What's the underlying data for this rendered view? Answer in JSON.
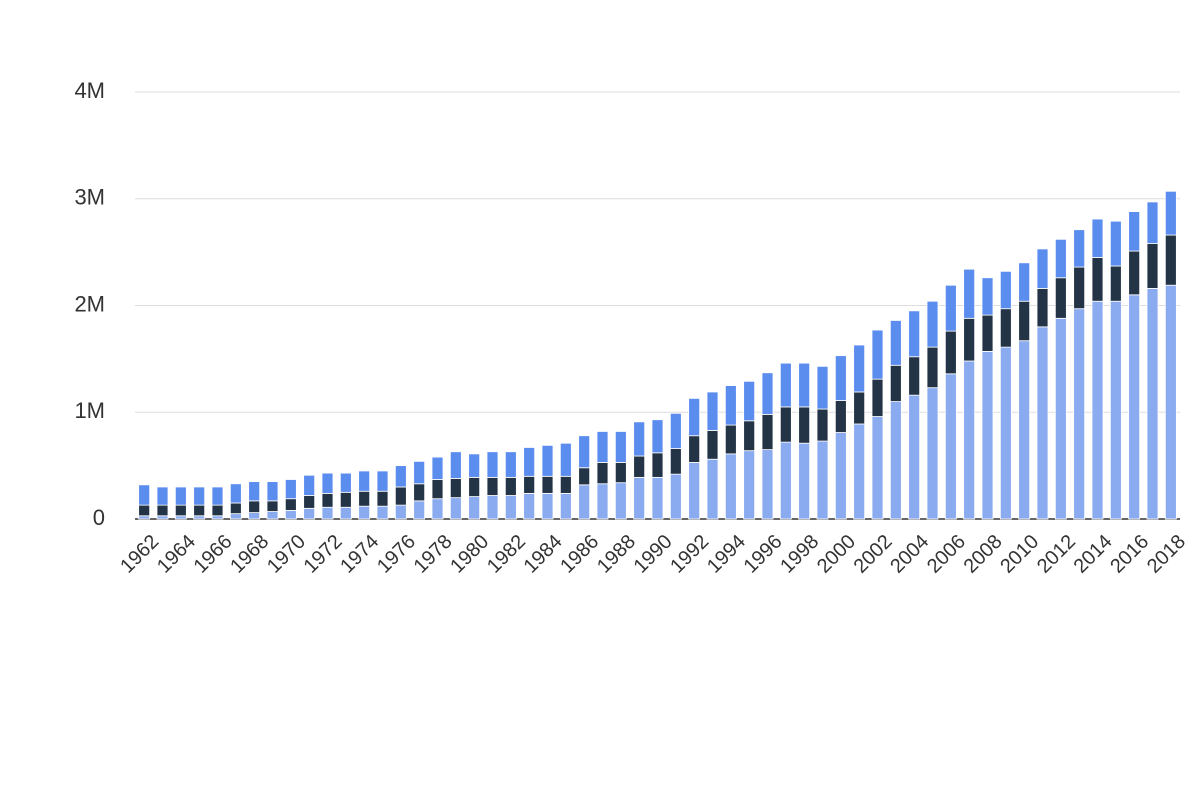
{
  "chart_data": {
    "type": "stacked_bar",
    "categories": [
      "1962",
      null,
      "1964",
      null,
      "1966",
      null,
      "1968",
      null,
      "1970",
      null,
      "1972",
      null,
      "1974",
      null,
      "1976",
      null,
      "1978",
      null,
      "1980",
      null,
      "1982",
      null,
      "1984",
      null,
      "1986",
      null,
      "1988",
      null,
      "1990",
      null,
      "1992",
      null,
      "1994",
      null,
      "1996",
      null,
      "1998",
      null,
      "2000",
      null,
      "2002",
      null,
      "2004",
      null,
      "2006",
      null,
      "2008",
      null,
      "2010",
      null,
      "2012",
      null,
      "2014",
      null,
      "2016",
      null,
      "2018"
    ],
    "series": [
      {
        "color": "#8aabef",
        "values": [
          30000,
          30000,
          30000,
          30000,
          30000,
          50000,
          60000,
          70000,
          80000,
          100000,
          110000,
          110000,
          120000,
          120000,
          130000,
          170000,
          190000,
          200000,
          210000,
          220000,
          220000,
          240000,
          240000,
          240000,
          320000,
          330000,
          340000,
          390000,
          390000,
          420000,
          530000,
          560000,
          610000,
          640000,
          650000,
          720000,
          710000,
          730000,
          810000,
          890000,
          960000,
          1100000,
          1160000,
          1230000,
          1360000,
          1480000,
          1570000,
          1610000,
          1670000,
          1800000,
          1880000,
          1970000,
          2040000,
          2040000,
          2100000,
          2160000,
          2190000
        ]
      },
      {
        "color": "#243447",
        "values": [
          100000,
          100000,
          100000,
          100000,
          100000,
          100000,
          110000,
          100000,
          110000,
          120000,
          130000,
          140000,
          140000,
          140000,
          170000,
          160000,
          180000,
          180000,
          180000,
          170000,
          170000,
          160000,
          160000,
          160000,
          160000,
          200000,
          190000,
          200000,
          230000,
          240000,
          250000,
          270000,
          270000,
          280000,
          330000,
          330000,
          340000,
          300000,
          300000,
          300000,
          350000,
          340000,
          360000,
          380000,
          400000,
          400000,
          340000,
          360000,
          370000,
          360000,
          380000,
          390000,
          410000,
          330000,
          410000,
          420000,
          470000
        ]
      },
      {
        "color": "#5b8def",
        "values": [
          190000,
          170000,
          170000,
          170000,
          170000,
          180000,
          180000,
          180000,
          180000,
          190000,
          190000,
          180000,
          190000,
          190000,
          200000,
          210000,
          210000,
          250000,
          220000,
          240000,
          240000,
          270000,
          290000,
          310000,
          300000,
          290000,
          290000,
          320000,
          310000,
          330000,
          350000,
          360000,
          370000,
          370000,
          390000,
          410000,
          410000,
          400000,
          420000,
          440000,
          460000,
          420000,
          430000,
          430000,
          430000,
          460000,
          350000,
          350000,
          360000,
          370000,
          360000,
          350000,
          360000,
          420000,
          370000,
          390000,
          410000
        ]
      }
    ],
    "ylim": [
      0,
      4000000
    ],
    "yticks": [
      0,
      {
        "value": 1000000,
        "label": "1M"
      },
      {
        "value": 2000000,
        "label": "2M"
      },
      {
        "value": 3000000,
        "label": "3M"
      },
      {
        "value": 4000000,
        "label": "4M"
      }
    ],
    "grid": true
  }
}
